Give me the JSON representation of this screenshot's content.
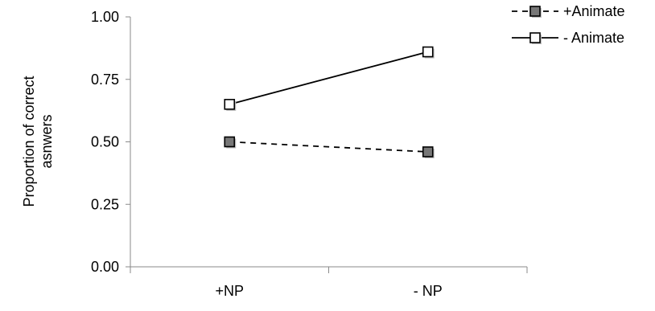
{
  "chart_data": {
    "type": "line",
    "categories": [
      "+NP",
      "- NP"
    ],
    "series": [
      {
        "name": "+Animate",
        "values": [
          0.5,
          0.46
        ],
        "line_style": "dashed",
        "marker_fill": "#777777",
        "line_color": "#000000"
      },
      {
        "name": "- Animate",
        "values": [
          0.65,
          0.86
        ],
        "line_style": "solid",
        "marker_fill": "#ffffff",
        "line_color": "#000000"
      }
    ],
    "ylabel": [
      "Proportion of correct",
      "asnwers"
    ],
    "xlabel": "",
    "ylim": [
      0,
      1
    ],
    "yticks": [
      "0.00",
      "0.25",
      "0.50",
      "0.75",
      "1.00"
    ],
    "grid": false,
    "legend_position": "top-right"
  }
}
